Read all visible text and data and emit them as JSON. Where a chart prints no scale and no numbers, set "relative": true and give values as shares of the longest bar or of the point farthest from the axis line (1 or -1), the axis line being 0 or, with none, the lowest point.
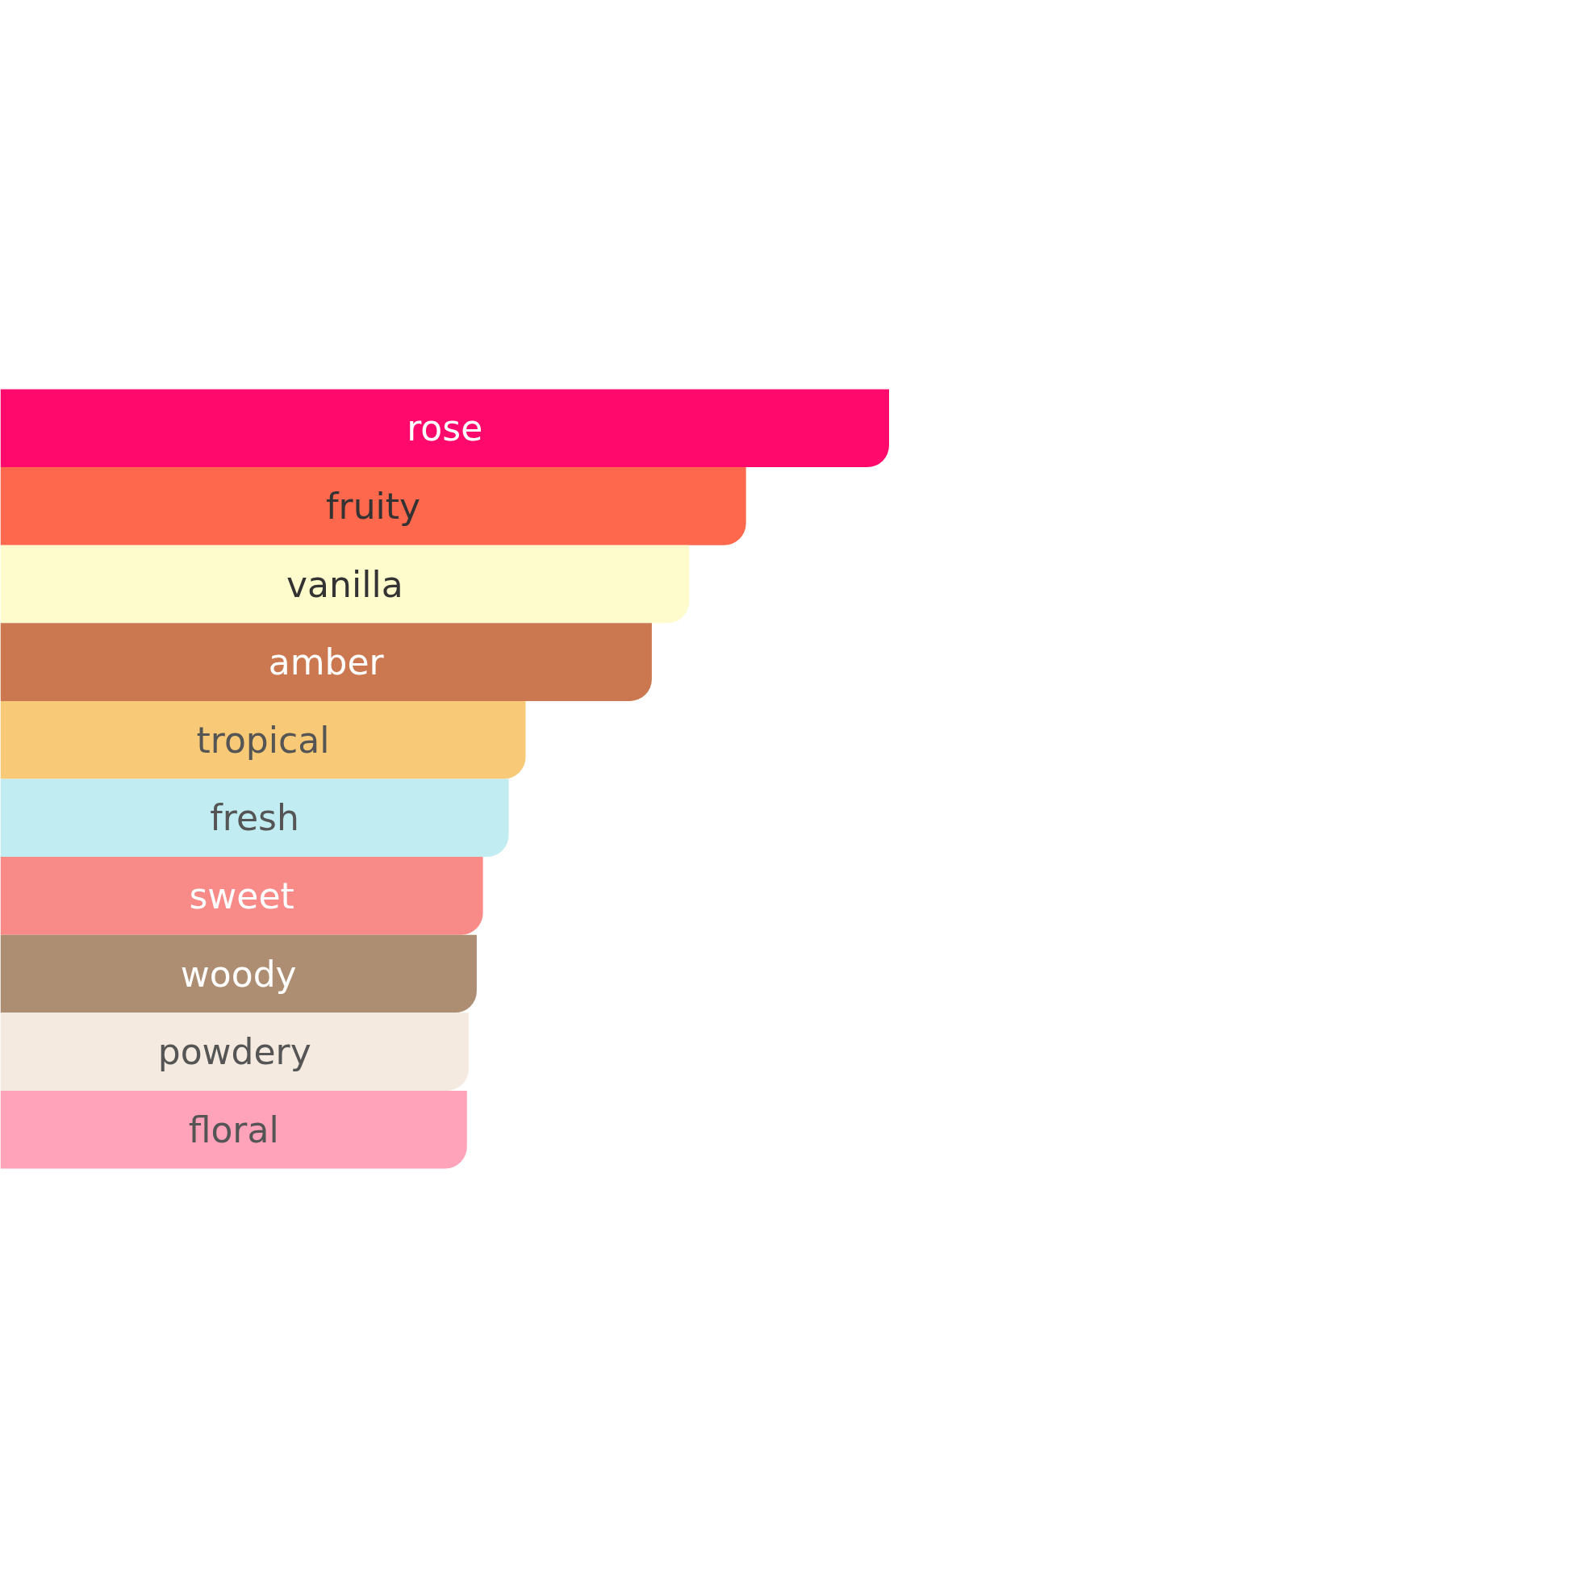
{
  "chart_data": {
    "type": "bar",
    "orientation": "horizontal",
    "relative": true,
    "categories": [
      "rose",
      "fruity",
      "vanilla",
      "amber",
      "tropical",
      "fresh",
      "sweet",
      "woody",
      "powdery",
      "floral"
    ],
    "values": [
      1,
      0.839,
      0.775,
      0.733,
      0.591,
      0.572,
      0.543,
      0.536,
      0.527,
      0.525
    ],
    "colors": [
      "#ff0a6c",
      "#fe684d",
      "#fefbcc",
      "#cb774f",
      "#f8ca78",
      "#c1ecf2",
      "#f88a88",
      "#ae8e73",
      "#f4eae0",
      "#ffa3bb"
    ]
  }
}
